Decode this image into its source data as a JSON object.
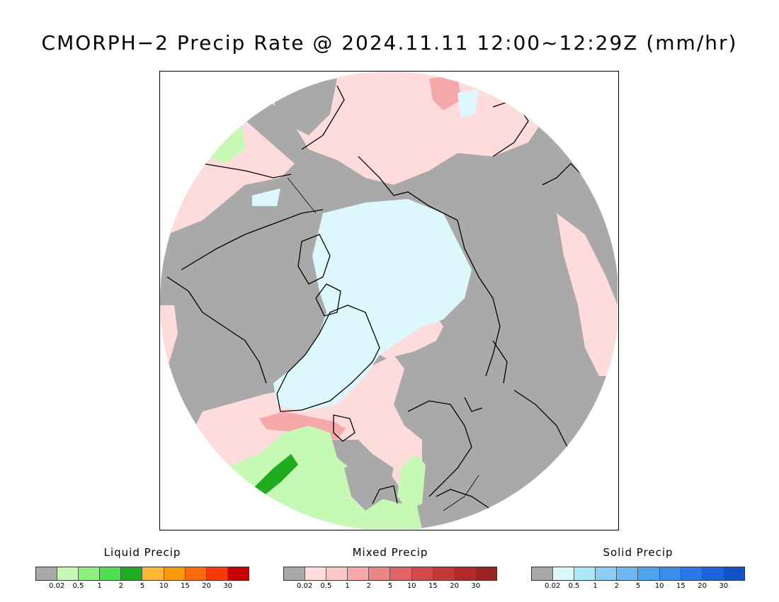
{
  "title": "CMORPH−2 Precip Rate @ 2024.11.11 12:00~12:29Z (mm/hr)",
  "map": {
    "projection": "north-polar-stereographic",
    "colors": {
      "background": "#ffffff",
      "no_precip": "#a9a9a9",
      "mixed_light": "#ffdcdc",
      "liquid_light": "#c6f9b4",
      "solid_light": "#dcf8fc",
      "coastline": "#000000"
    }
  },
  "legends": [
    {
      "title": "Liquid Precip",
      "colors": [
        "#a9a9a9",
        "#c6f9b4",
        "#8df07e",
        "#4fe04f",
        "#1fac21",
        "#fcb835",
        "#fc9a05",
        "#fc6c06",
        "#fa3a04",
        "#c90000"
      ],
      "ticks": [
        "0.02",
        "0.5",
        "1",
        "2",
        "5",
        "10",
        "15",
        "20",
        "30"
      ]
    },
    {
      "title": "Mixed Precip",
      "colors": [
        "#a9a9a9",
        "#ffdcdc",
        "#fbc7c8",
        "#f6a7a9",
        "#ec8585",
        "#e06464",
        "#d44a4a",
        "#c43838",
        "#b32828",
        "#9e2424"
      ],
      "ticks": [
        "0.02",
        "0.5",
        "1",
        "2",
        "5",
        "10",
        "15",
        "20",
        "30"
      ]
    },
    {
      "title": "Solid Precip",
      "colors": [
        "#a9a9a9",
        "#dcf8fc",
        "#aae9fa",
        "#8ccdf8",
        "#6db7f5",
        "#4fa4f0",
        "#3c8ceb",
        "#2c78e6",
        "#1f64dc",
        "#1452c9"
      ],
      "ticks": [
        "0.02",
        "0.5",
        "1",
        "2",
        "5",
        "10",
        "15",
        "20",
        "30"
      ]
    }
  ]
}
